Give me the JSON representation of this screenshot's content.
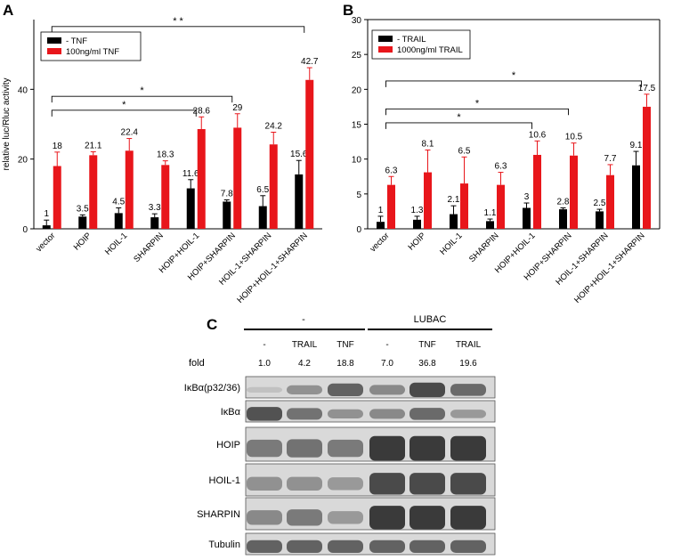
{
  "colors": {
    "untreated": "#000000",
    "treated": "#e8161b",
    "blot_bg": "#d9d9d9",
    "band": "#3a3a3a"
  },
  "chart_data": [
    {
      "panel": "A",
      "type": "bar",
      "ylabel": "relative luc/Rluc activity",
      "xlabel": "",
      "ylim": [
        0,
        60
      ],
      "yticks": [
        0,
        20,
        40
      ],
      "legend_placement": "top-left",
      "categories": [
        "vector",
        "HOIP",
        "HOIL-1",
        "SHARPIN",
        "HOIP+HOIL-1",
        "HOIP+SHARPIN",
        "HOIL-1+SHARPIN",
        "HOIP+HOIL-1+SHARPIN"
      ],
      "series": [
        {
          "name": "- TNF",
          "values": [
            1,
            3.5,
            4.5,
            3.3,
            11.6,
            7.8,
            6.5,
            15.6
          ],
          "errors": [
            1.5,
            0.5,
            1.5,
            1.0,
            2.5,
            0.5,
            3.0,
            4.0
          ],
          "labels": [
            "1",
            "3.5",
            "4.5",
            "3.3",
            "11.6",
            "7.8",
            "6.5",
            "15.6"
          ]
        },
        {
          "name": "100ng/ml TNF",
          "values": [
            18,
            21.1,
            22.4,
            18.3,
            28.6,
            29,
            24.2,
            42.7
          ],
          "errors": [
            4.0,
            1.0,
            3.5,
            1.2,
            3.5,
            4.0,
            3.5,
            3.5
          ],
          "labels": [
            "18",
            "21.1",
            "22.4",
            "18.3",
            "28.6",
            "29",
            "24.2",
            "42.7"
          ]
        }
      ],
      "significance": [
        {
          "from": 0,
          "to": 7,
          "level": 58,
          "label": "* *"
        },
        {
          "from": 0,
          "to": 5,
          "level": 38,
          "label": "*"
        },
        {
          "from": 0,
          "to": 4,
          "level": 34,
          "label": "*"
        }
      ]
    },
    {
      "panel": "B",
      "type": "bar",
      "ylabel": "",
      "xlabel": "",
      "ylim": [
        0,
        30
      ],
      "yticks": [
        0,
        5,
        10,
        15,
        20,
        25,
        30
      ],
      "legend_placement": "top-left",
      "categories": [
        "vector",
        "HOIP",
        "HOIL-1",
        "SHARPIN",
        "HOIP+HOIL-1",
        "HOIP+SHARPIN",
        "HOIL-1+SHARPIN",
        "HOIP+HOIL-1+SHARPIN"
      ],
      "series": [
        {
          "name": "- TRAIL",
          "values": [
            1,
            1.3,
            2.1,
            1.1,
            3,
            2.8,
            2.5,
            9.1
          ],
          "errors": [
            0.8,
            0.5,
            1.2,
            0.3,
            0.7,
            0.2,
            0.3,
            2.0
          ],
          "labels": [
            "1",
            "1.3",
            "2.1",
            "1.1",
            "3",
            "2.8",
            "2.5",
            "9.1"
          ]
        },
        {
          "name": "1000ng/ml TRAIL",
          "values": [
            6.3,
            8.1,
            6.5,
            6.3,
            10.6,
            10.5,
            7.7,
            17.5
          ],
          "errors": [
            1.2,
            3.2,
            3.8,
            1.8,
            2.0,
            1.8,
            1.5,
            1.8
          ],
          "labels": [
            "6.3",
            "8.1",
            "6.5",
            "6.3",
            "10.6",
            "10.5",
            "7.7",
            "17.5"
          ]
        }
      ],
      "significance": [
        {
          "from": 0,
          "to": 7,
          "level": 21.2,
          "label": "*"
        },
        {
          "from": 0,
          "to": 5,
          "level": 17.2,
          "label": "*"
        },
        {
          "from": 0,
          "to": 4,
          "level": 15.2,
          "label": "*"
        }
      ]
    },
    {
      "panel": "C",
      "type": "table",
      "groups": [
        "-",
        "LUBAC"
      ],
      "lanes": [
        "-",
        "TRAIL",
        "TNF",
        "-",
        "TNF",
        "TRAIL"
      ],
      "fold_label": "fold",
      "fold": [
        "1.0",
        "4.2",
        "18.8",
        "7.0",
        "36.8",
        "19.6"
      ],
      "rows": [
        {
          "label": "IκBα(p32/36)",
          "intensity": [
            0.15,
            0.45,
            0.75,
            0.5,
            0.9,
            0.7
          ]
        },
        {
          "label": "IκBα",
          "intensity": [
            0.85,
            0.65,
            0.45,
            0.5,
            0.7,
            0.4
          ]
        },
        {
          "label": "HOIP",
          "intensity": [
            0.6,
            0.65,
            0.6,
            1.0,
            1.0,
            1.0
          ]
        },
        {
          "label": "HOIL-1",
          "intensity": [
            0.45,
            0.45,
            0.4,
            0.9,
            0.9,
            0.9
          ]
        },
        {
          "label": "SHARPIN",
          "intensity": [
            0.5,
            0.6,
            0.4,
            1.0,
            1.0,
            1.0
          ]
        },
        {
          "label": "Tubulin",
          "intensity": [
            0.75,
            0.75,
            0.75,
            0.75,
            0.75,
            0.75
          ]
        }
      ]
    }
  ]
}
